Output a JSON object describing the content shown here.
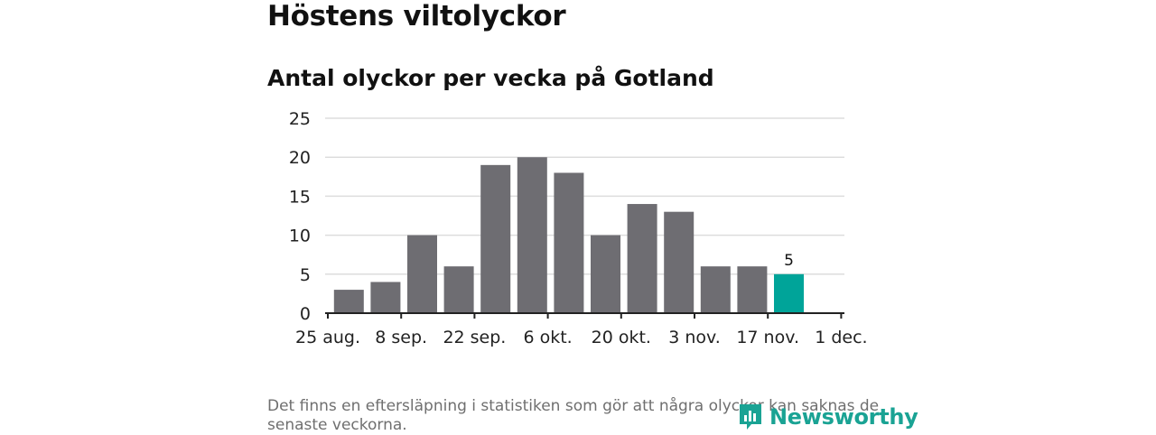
{
  "header": {
    "title": "Höstens viltolyckor",
    "subtitle": "Antal olyckor per vecka på Gotland"
  },
  "chart_data": {
    "type": "bar",
    "title": "Antal olyckor per vecka på Gotland",
    "xlabel": "",
    "ylabel": "",
    "ylim": [
      0,
      25
    ],
    "yticks": [
      "0",
      "5",
      "10",
      "15",
      "20",
      "25"
    ],
    "xticks": [
      "25 aug.",
      "8 sep.",
      "22 sep.",
      "6 okt.",
      "20 okt.",
      "3 nov.",
      "17 nov.",
      "1 dec."
    ],
    "values": [
      3,
      4,
      10,
      6,
      19,
      20,
      18,
      10,
      14,
      13,
      6,
      6,
      5
    ],
    "highlight_index": 12,
    "highlight_label": "5",
    "colors": {
      "bar": "#6e6d72",
      "highlight": "#00a499",
      "grid": "#dddddd",
      "axis": "#222222"
    }
  },
  "footer": {
    "note": "Det finns en eftersläpning i statistiken som gör att några olyckor kan saknas de senaste veckorna.",
    "brand": "Newsworthy"
  }
}
